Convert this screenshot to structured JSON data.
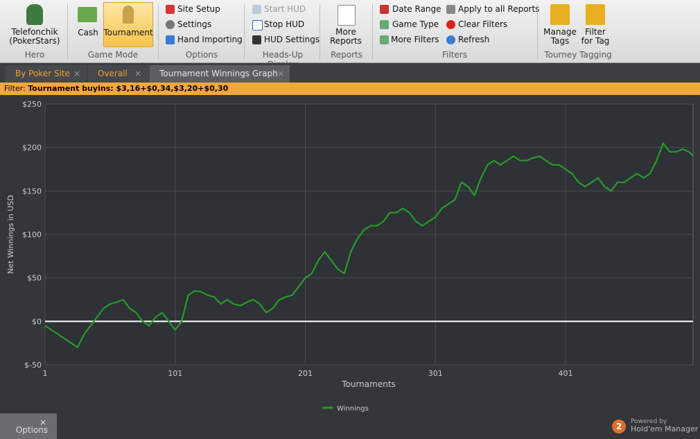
{
  "ribbon": {
    "groups": [
      {
        "label": "Hero",
        "buttons": [
          "Telefonchik\n(PokerStars)"
        ]
      },
      {
        "label": "Game Mode",
        "buttons": [
          "Cash",
          "Tournament"
        ]
      },
      {
        "label": "Options",
        "buttons": [
          "Site Setup",
          "Settings",
          "Hand Importing"
        ]
      },
      {
        "label": "Heads-Up Display",
        "buttons": [
          "Start HUD",
          "Stop HUD",
          "HUD Settings"
        ]
      },
      {
        "label": "Reports",
        "buttons": [
          "More\nReports"
        ]
      },
      {
        "label": "Filters",
        "buttons": [
          "Date Range",
          "Game Type",
          "More Filters",
          "Apply to all Reports",
          "Clear Filters",
          "Refresh"
        ]
      },
      {
        "label": "Tourney Tagging",
        "buttons": [
          "Manage\nTags",
          "Filter\nfor Tag"
        ]
      }
    ]
  },
  "tabs": [
    "By Poker Site",
    "Overall",
    "Tournament Winnings Graph"
  ],
  "filter": {
    "label": "Filter:",
    "value": "Tournament buyins: $3,16+$0,34,$3,20+$0,30"
  },
  "chart_data": {
    "type": "line",
    "xlabel": "Tournaments",
    "ylabel": "Net Winnings in USD",
    "x": [
      1,
      11,
      21,
      26,
      31,
      36,
      41,
      46,
      51,
      56,
      61,
      66,
      71,
      76,
      81,
      86,
      91,
      96,
      101,
      106,
      111,
      116,
      121,
      126,
      131,
      136,
      141,
      146,
      151,
      156,
      161,
      166,
      171,
      176,
      181,
      186,
      191,
      196,
      201,
      206,
      211,
      216,
      221,
      226,
      231,
      236,
      241,
      246,
      251,
      256,
      261,
      266,
      271,
      276,
      281,
      286,
      291,
      296,
      301,
      306,
      311,
      316,
      321,
      326,
      331,
      336,
      341,
      346,
      351,
      356,
      361,
      366,
      371,
      376,
      381,
      386,
      391,
      396,
      401,
      406,
      411,
      416,
      421,
      426,
      431,
      436,
      441,
      446,
      451,
      456,
      461,
      466,
      471,
      476,
      481,
      486,
      491,
      496,
      499
    ],
    "series": [
      {
        "name": "Winnings",
        "color": "#2a9a2a",
        "values": [
          -5,
          -15,
          -25,
          -30,
          -15,
          -5,
          5,
          15,
          20,
          22,
          25,
          15,
          10,
          0,
          -5,
          5,
          10,
          0,
          -10,
          0,
          30,
          35,
          34,
          30,
          28,
          20,
          25,
          20,
          18,
          22,
          25,
          20,
          10,
          15,
          25,
          28,
          30,
          40,
          50,
          55,
          70,
          80,
          70,
          60,
          55,
          80,
          95,
          105,
          110,
          110,
          115,
          125,
          125,
          130,
          125,
          115,
          110,
          115,
          120,
          130,
          135,
          140,
          160,
          155,
          145,
          165,
          180,
          185,
          180,
          185,
          190,
          185,
          185,
          188,
          190,
          185,
          180,
          180,
          175,
          170,
          160,
          155,
          160,
          165,
          155,
          150,
          160,
          160,
          165,
          170,
          165,
          170,
          185,
          205,
          195,
          195,
          198,
          195,
          190
        ]
      }
    ],
    "xlim": [
      1,
      499
    ],
    "ylim": [
      -50,
      250
    ],
    "xticks": [
      1,
      101,
      201,
      301,
      401
    ],
    "yticks": [
      {
        "value": -50,
        "label": "$-50"
      },
      {
        "value": 0,
        "label": "$0"
      },
      {
        "value": 50,
        "label": "$50"
      },
      {
        "value": 100,
        "label": "$100"
      },
      {
        "value": 150,
        "label": "$150"
      },
      {
        "value": 200,
        "label": "$200"
      },
      {
        "value": 250,
        "label": "$250"
      }
    ],
    "grid": true
  },
  "branding": {
    "badge": "2",
    "powered": "Powered by",
    "product": "Hold'em Manager"
  },
  "options_panel": {
    "title": "Options"
  }
}
